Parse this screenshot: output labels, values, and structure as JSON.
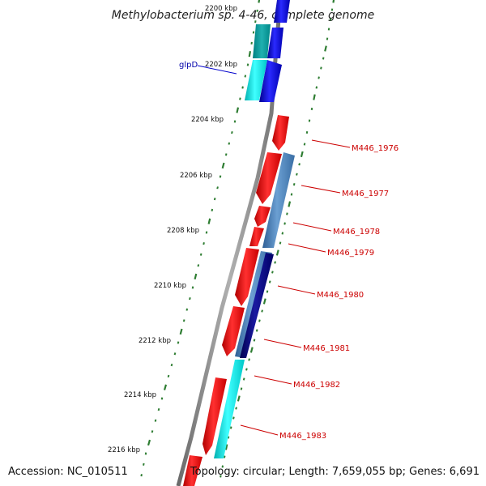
{
  "title": "Methylobacterium sp. 4-46, complete genome",
  "footer": {
    "accession": "Accession: NC_010511",
    "topology": "Topology: circular; Length: 7,659,055 bp; Genes: 6,691"
  },
  "colors": {
    "forward_cds": "#0000ee",
    "forward_cds_light": "#00e5e5",
    "reverse_cds": "#ee0000",
    "reverse_cds_steel": "#4a7fb5",
    "reverse_cds_navy": "#000080",
    "backbone": "#808080",
    "tick": "#2e7d32",
    "label_forward": "#0000aa",
    "label_reverse": "#cc0000"
  },
  "scale_labels": [
    {
      "id": "2200",
      "text": "2200 kbp"
    },
    {
      "id": "2202",
      "text": "2202 kbp"
    },
    {
      "id": "2204",
      "text": "2204 kbp"
    },
    {
      "id": "2206",
      "text": "2206 kbp"
    },
    {
      "id": "2208",
      "text": "2208 kbp"
    },
    {
      "id": "2210",
      "text": "2210 kbp"
    },
    {
      "id": "2212",
      "text": "2212 kbp"
    },
    {
      "id": "2214",
      "text": "2214 kbp"
    },
    {
      "id": "2216",
      "text": "2216 kbp"
    }
  ],
  "gene_labels": [
    {
      "id": "glpD",
      "text": "glpD",
      "strand": "forward"
    },
    {
      "id": "M446_1976",
      "text": "M446_1976",
      "strand": "reverse"
    },
    {
      "id": "M446_1977",
      "text": "M446_1977",
      "strand": "reverse"
    },
    {
      "id": "M446_1978",
      "text": "M446_1978",
      "strand": "reverse"
    },
    {
      "id": "M446_1979",
      "text": "M446_1979",
      "strand": "reverse"
    },
    {
      "id": "M446_1980",
      "text": "M446_1980",
      "strand": "reverse"
    },
    {
      "id": "M446_1981",
      "text": "M446_1981",
      "strand": "reverse"
    },
    {
      "id": "M446_1982",
      "text": "M446_1982",
      "strand": "reverse"
    },
    {
      "id": "M446_1983",
      "text": "M446_1983",
      "strand": "reverse"
    }
  ]
}
